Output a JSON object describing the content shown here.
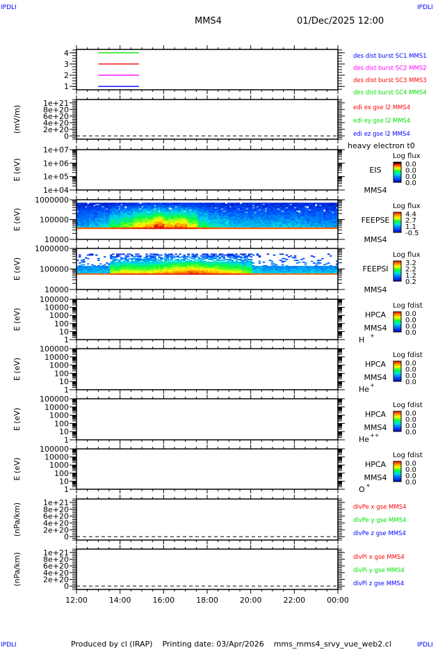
{
  "corner_marks": [
    "IPDLI",
    "IPDLI",
    "IPDLI",
    "IPDLI"
  ],
  "header": {
    "spacecraft": "MMS4",
    "datetime": "01/Dec/2025 12:00"
  },
  "footer": {
    "text": "Produced by cl (IRAP)    Printing date: 03/Apr/2026    mms_mms4_srvy_vue_web2.cl"
  },
  "colors": {
    "red": "#ff0000",
    "green": "#00e000",
    "blue": "#0000ff",
    "magenta": "#ff00ff"
  },
  "chart_data": {
    "type": "multi-panel time series / spectrogram",
    "x_ticks": [
      "12:00",
      "14:00",
      "16:00",
      "18:00",
      "20:00",
      "22:00",
      "00:00"
    ],
    "x_range_hours": [
      12,
      24
    ],
    "panels": [
      {
        "id": "burst",
        "type": "line",
        "ylabel": "",
        "ylim": [
          0.7,
          4.3
        ],
        "ytick_labels": [
          "4",
          "3",
          "2",
          "1"
        ],
        "ytick_values": [
          4,
          3,
          2,
          1
        ],
        "series": [
          {
            "name": "des dist burst SC1 MMS1",
            "color": "#0000ff",
            "y": 1,
            "x_start_h": 13.0,
            "x_end_h": 14.87
          },
          {
            "name": "des dist burst SC2 MMS2",
            "color": "#ff00ff",
            "y": 2,
            "x_start_h": 13.0,
            "x_end_h": 14.87
          },
          {
            "name": "des dist burst SC3 MMS3",
            "color": "#ff0000",
            "y": 3,
            "x_start_h": 13.0,
            "x_end_h": 14.87
          },
          {
            "name": "des dist burst SC4 MMS4",
            "color": "#00e000",
            "y": 4,
            "x_start_h": 13.0,
            "x_end_h": 14.87
          }
        ],
        "legend": [
          {
            "text": "des dist burst SC1 MMS1",
            "color": "#0000ff"
          },
          {
            "text": "des dist burst SC2 MMS2",
            "color": "#ff00ff"
          },
          {
            "text": "des dist burst SC3 MMS3",
            "color": "#ff0000"
          },
          {
            "text": "des dist burst SC4 MMS4",
            "color": "#00e000"
          }
        ]
      },
      {
        "id": "edi",
        "type": "line",
        "ylabel": "(mV/m)",
        "ylim": [
          -1e+20,
          1.1e+21
        ],
        "ytick_labels": [
          "1e+21",
          "8e+20",
          "6e+20",
          "4e+20",
          "2e+20",
          "0"
        ],
        "ytick_values": [
          1e+21,
          8e+20,
          6e+20,
          4e+20,
          2e+20,
          0
        ],
        "zero_line": true,
        "legend": [
          {
            "text": "edi ex gse l2 MMS4",
            "color": "#ff0000"
          },
          {
            "text": "edi ey gse l2 MMS4",
            "color": "#00e000"
          },
          {
            "text": "edi ez gse l2 MMS4",
            "color": "#0000ff"
          }
        ]
      },
      {
        "id": "eis",
        "type": "heatmap",
        "ylabel": "E (eV)",
        "log_range": [
          4,
          7
        ],
        "ytick_labels": [
          "1e+07",
          "1e+06",
          "1e+05",
          "1e+04"
        ],
        "ytick_exps": [
          7,
          6,
          5,
          4
        ],
        "instrument": "EIS",
        "overlay_text": "heavy electron t0",
        "sc": "MMS4",
        "colorbar": {
          "title": "Log flux",
          "labels": [
            "0.0",
            "0.0",
            "0.0",
            "0.0"
          ],
          "black_top": true
        },
        "activity": null
      },
      {
        "id": "feepse",
        "type": "heatmap",
        "ylabel": "E (eV)",
        "log_range": [
          4,
          6
        ],
        "ytick_labels": [
          "1000000",
          "100000",
          "10000"
        ],
        "ytick_exps": [
          6,
          5,
          4
        ],
        "instrument": "FEEPSE",
        "sc": "MMS4",
        "colorbar": {
          "title": "Log flux",
          "labels": [
            "4.4",
            "2.7",
            "1.1",
            "-0.5"
          ]
        },
        "band_log_e": [
          4.52,
          4.62
        ],
        "top_log_e": 5.85,
        "activity": [
          0.25,
          0.3,
          0.35,
          0.5,
          0.6,
          0.75,
          0.8,
          0.95,
          0.8,
          0.85,
          0.7,
          0.5,
          0.4,
          0.35,
          0.3,
          0.3,
          0.3,
          0.3,
          0.3,
          0.3,
          0.3,
          0.25,
          0.25,
          0.25,
          0.25
        ]
      },
      {
        "id": "feepsi",
        "type": "heatmap",
        "ylabel": "E (eV)",
        "log_range": [
          4,
          6
        ],
        "ytick_labels": [
          "1000000",
          "100000",
          "10000"
        ],
        "ytick_exps": [
          6,
          5,
          4
        ],
        "instrument": "FEEPSI",
        "sc": "MMS4",
        "colorbar": {
          "title": "Log flux",
          "labels": [
            "3.2",
            "2.2",
            "1.2",
            "0.2"
          ]
        },
        "band_log_e": [
          4.72,
          4.8
        ],
        "top_log_e": 5.75,
        "activity": [
          0.3,
          0.3,
          0.3,
          0.65,
          0.7,
          0.7,
          0.7,
          0.75,
          0.8,
          0.85,
          0.9,
          0.85,
          0.8,
          0.75,
          0.7,
          0.6,
          0.35,
          0.3,
          0.3,
          0.3,
          0.3,
          0.3,
          0.3,
          0.3,
          0.3
        ]
      },
      {
        "id": "hpca-h",
        "type": "heatmap",
        "ylabel": "E (eV)",
        "log_range": [
          0,
          5
        ],
        "ytick_labels": [
          "100000",
          "10000",
          "1000",
          "100",
          "10",
          "1"
        ],
        "ytick_exps": [
          5,
          4,
          3,
          2,
          1,
          0
        ],
        "instrument": "HPCA",
        "sc": "MMS4",
        "species": "H",
        "charge": "+",
        "colorbar": {
          "title": "Log fdist",
          "labels": [
            "0.0",
            "0.0",
            "0.0",
            "0.0"
          ]
        },
        "activity": null
      },
      {
        "id": "hpca-he1",
        "type": "heatmap",
        "ylabel": "E (eV)",
        "log_range": [
          0,
          5
        ],
        "ytick_labels": [
          "100000",
          "10000",
          "1000",
          "100",
          "10",
          "1"
        ],
        "ytick_exps": [
          5,
          4,
          3,
          2,
          1,
          0
        ],
        "instrument": "HPCA",
        "sc": "MMS4",
        "species": "He",
        "charge": "+",
        "colorbar": {
          "title": "Log fdist",
          "labels": [
            "0.0",
            "0.0",
            "0.0",
            "0.0"
          ]
        },
        "activity": null
      },
      {
        "id": "hpca-he2",
        "type": "heatmap",
        "ylabel": "E (eV)",
        "log_range": [
          0,
          5
        ],
        "ytick_labels": [
          "100000",
          "10000",
          "1000",
          "100",
          "10",
          "1"
        ],
        "ytick_exps": [
          5,
          4,
          3,
          2,
          1,
          0
        ],
        "instrument": "HPCA",
        "sc": "MMS4",
        "species": "He",
        "charge": "++",
        "colorbar": {
          "title": "Log fdist",
          "labels": [
            "0.0",
            "0.0",
            "0.0",
            "0.0"
          ]
        },
        "activity": null
      },
      {
        "id": "hpca-o",
        "type": "heatmap",
        "ylabel": "E (eV)",
        "log_range": [
          0,
          5
        ],
        "ytick_labels": [
          "100000",
          "10000",
          "1000",
          "100",
          "10",
          "1"
        ],
        "ytick_exps": [
          5,
          4,
          3,
          2,
          1,
          0
        ],
        "instrument": "HPCA",
        "sc": "MMS4",
        "species": "O",
        "charge": "+",
        "colorbar": {
          "title": "Log fdist",
          "labels": [
            "0.0",
            "0.0",
            "0.0",
            "0.0"
          ]
        },
        "activity": null
      },
      {
        "id": "divpe",
        "type": "line",
        "ylabel": "(nPa/km)",
        "ylim": [
          -1e+20,
          1.1e+21
        ],
        "ytick_labels": [
          "1e+21",
          "8e+20",
          "6e+20",
          "4e+20",
          "2e+20",
          "0"
        ],
        "ytick_values": [
          1e+21,
          8e+20,
          6e+20,
          4e+20,
          2e+20,
          0
        ],
        "zero_line": true,
        "legend": [
          {
            "text": "divPe x gse MMS4",
            "color": "#ff0000"
          },
          {
            "text": "divPe y gse MMS4",
            "color": "#00e000"
          },
          {
            "text": "divPe z gse MMS4",
            "color": "#0000ff"
          }
        ]
      },
      {
        "id": "divpi",
        "type": "line",
        "ylabel": "(nPa/km)",
        "ylim": [
          -1e+20,
          1.1e+21
        ],
        "ytick_labels": [
          "1e+21",
          "8e+20",
          "6e+20",
          "4e+20",
          "2e+20",
          "0"
        ],
        "ytick_values": [
          1e+21,
          8e+20,
          6e+20,
          4e+20,
          2e+20,
          0
        ],
        "zero_line": true,
        "legend": [
          {
            "text": "divPi x gse MMS4",
            "color": "#ff0000"
          },
          {
            "text": "divPi y gse MMS4",
            "color": "#00e000"
          },
          {
            "text": "divPi z gse MMS4",
            "color": "#0000ff"
          }
        ]
      }
    ]
  }
}
